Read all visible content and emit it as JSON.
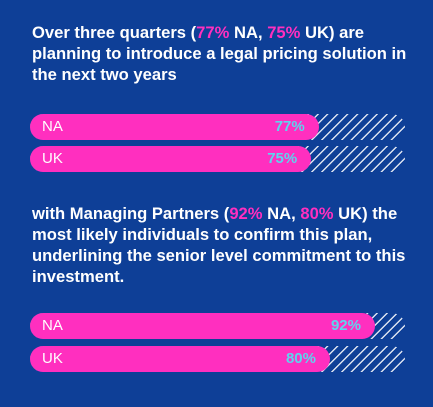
{
  "colors": {
    "background": "#0e3f97",
    "accent": "#ff2fbf",
    "value_text": "#5ed4ee",
    "text": "#ffffff"
  },
  "chart_data": [
    {
      "type": "bar",
      "orientation": "horizontal",
      "caption": {
        "p1": "Over three quarters (",
        "v1": "77%",
        "p2": " NA, ",
        "v2": "75%",
        "p3": " UK) are planning to introduce a legal pricing solution in the next two years"
      },
      "categories": [
        "NA",
        "UK"
      ],
      "values": [
        77,
        75
      ],
      "value_labels": [
        "77%",
        "75%"
      ],
      "xlim": [
        0,
        100
      ]
    },
    {
      "type": "bar",
      "orientation": "horizontal",
      "caption": {
        "p1": "with Managing Partners (",
        "v1": "92%",
        "p2": " NA, ",
        "v2": "80%",
        "p3": " UK) the most likely individuals to confirm this plan, underlining the senior level commitment to this investment."
      },
      "categories": [
        "NA",
        "UK"
      ],
      "values": [
        92,
        80
      ],
      "value_labels": [
        "92%",
        "80%"
      ],
      "xlim": [
        0,
        100
      ]
    }
  ]
}
